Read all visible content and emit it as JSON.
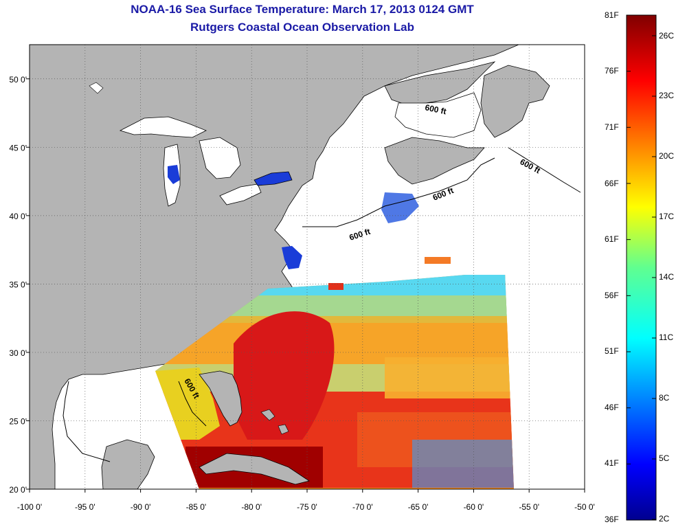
{
  "title_line1": "NOAA-16 Sea Surface Temperature:  March 17, 2013 0124 GMT",
  "title_line2": "Rutgers Coastal Ocean Observation Lab",
  "map": {
    "lon_ticks": [
      "-100 0'",
      "-95 0'",
      "-90 0'",
      "-85 0'",
      "-80 0'",
      "-75 0'",
      "-70 0'",
      "-65 0'",
      "-60 0'",
      "-55 0'",
      "-50 0'"
    ],
    "lat_ticks": [
      "50 0'",
      "45 0'",
      "40 0'",
      "35 0'",
      "30 0'",
      "25 0'",
      "20 0'"
    ],
    "contour_labels": [
      "600 ft",
      "600 ft",
      "600 ft",
      "600 ft",
      "600 ft"
    ],
    "colors": {
      "land": "#b4b4b4",
      "ocean_nodata": "#ffffff",
      "lake_cold": "#1a3cd8"
    }
  },
  "colorbar": {
    "fahrenheit": [
      "81F",
      "76F",
      "71F",
      "66F",
      "61F",
      "56F",
      "51F",
      "46F",
      "41F",
      "36F"
    ],
    "celsius": [
      "26C",
      "23C",
      "20C",
      "17C",
      "14C",
      "11C",
      "8C",
      "5C",
      "2C"
    ],
    "colormap": "jet"
  }
}
